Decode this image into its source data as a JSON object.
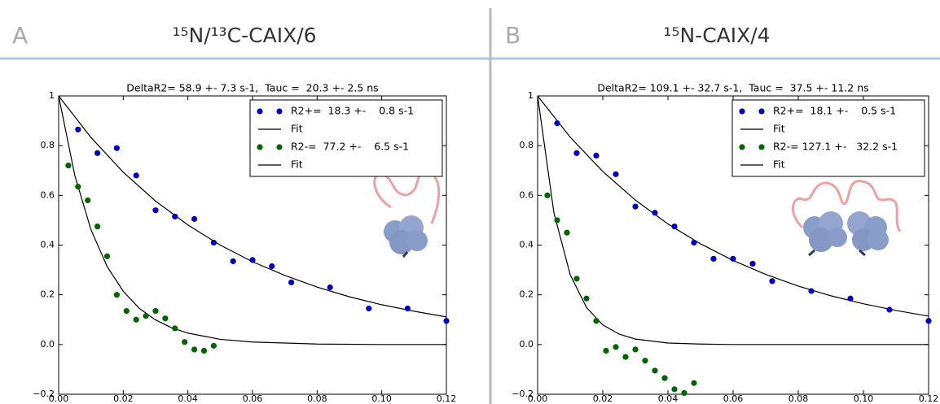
{
  "chart_data": [
    {
      "type": "scatter",
      "panel": "A",
      "title": "¹⁵N/¹³C-CAIX/6",
      "subtitle": "DeltaR2= 58.9 +- 7.3 s-1,  Tauc =  20.3 +- 2.5 ns",
      "xlim": [
        0,
        0.12
      ],
      "ylim": [
        -0.2,
        1.0
      ],
      "xticks": [
        {
          "value": 0,
          "label": "0.00"
        },
        {
          "value": 0.02,
          "label": "0.02"
        },
        {
          "value": 0.04,
          "label": "0.04"
        },
        {
          "value": 0.06,
          "label": "0.06"
        },
        {
          "value": 0.08,
          "label": "0.08"
        },
        {
          "value": 0.1,
          "label": "0.10"
        },
        {
          "value": 0.12,
          "label": "0.12"
        }
      ],
      "yticks": [
        {
          "value": -0.2,
          "label": "−0.2"
        },
        {
          "value": 0,
          "label": "0.0"
        },
        0.2,
        0.4,
        0.6,
        0.8,
        1.0
      ],
      "legend": "upper right",
      "series": [
        {
          "name": "R2+=  18.3 +-    0.8 s-1",
          "type": "scatter",
          "color": "#0000bf",
          "x": [
            0.006,
            0.012,
            0.018,
            0.024,
            0.03,
            0.036,
            0.042,
            0.048,
            0.054,
            0.06,
            0.066,
            0.072,
            0.084,
            0.096,
            0.108,
            0.12
          ],
          "values": [
            0.865,
            0.77,
            0.79,
            0.68,
            0.54,
            0.515,
            0.505,
            0.41,
            0.335,
            0.34,
            0.315,
            0.25,
            0.23,
            0.145,
            0.145,
            0.095
          ]
        },
        {
          "name": "Fit",
          "type": "line",
          "color": "#000000",
          "x": [
            0,
            0.01,
            0.02,
            0.03,
            0.04,
            0.05,
            0.06,
            0.07,
            0.08,
            0.09,
            0.1,
            0.11,
            0.12
          ],
          "values": [
            1,
            0.833,
            0.693,
            0.577,
            0.481,
            0.4,
            0.333,
            0.278,
            0.231,
            0.192,
            0.16,
            0.134,
            0.111
          ]
        },
        {
          "name": "R2-=  77.2 +-    6.5 s-1",
          "type": "scatter",
          "color": "#006400",
          "x": [
            0.003,
            0.006,
            0.009,
            0.012,
            0.015,
            0.018,
            0.021,
            0.024,
            0.027,
            0.03,
            0.033,
            0.036,
            0.039,
            0.042,
            0.045,
            0.048
          ],
          "values": [
            0.72,
            0.635,
            0.58,
            0.475,
            0.355,
            0.2,
            0.135,
            0.1,
            0.115,
            0.135,
            0.105,
            0.065,
            0.01,
            -0.02,
            -0.025,
            -0.005
          ]
        },
        {
          "name": "Fit",
          "type": "line",
          "color": "#000000",
          "x": [
            0,
            0.005,
            0.01,
            0.015,
            0.02,
            0.025,
            0.03,
            0.035,
            0.04,
            0.05,
            0.06,
            0.08,
            0.1,
            0.12
          ],
          "values": [
            1,
            0.68,
            0.462,
            0.314,
            0.214,
            0.145,
            0.099,
            0.067,
            0.046,
            0.021,
            0.01,
            0.002,
            0,
            0
          ]
        }
      ]
    },
    {
      "type": "scatter",
      "panel": "B",
      "title": "¹⁵N-CAIX/4",
      "subtitle": "DeltaR2= 109.1 +- 32.7 s-1,  Tauc =  37.5 +- 11.2 ns",
      "xlim": [
        0,
        0.12
      ],
      "ylim": [
        -0.2,
        1.0
      ],
      "xticks": [
        {
          "value": 0,
          "label": "0.00"
        },
        {
          "value": 0.02,
          "label": "0.02"
        },
        {
          "value": 0.04,
          "label": "0.04"
        },
        {
          "value": 0.06,
          "label": "0.06"
        },
        {
          "value": 0.08,
          "label": "0.08"
        },
        {
          "value": 0.1,
          "label": "0.10"
        },
        {
          "value": 0.12,
          "label": "0.12"
        }
      ],
      "yticks": [
        {
          "value": -0.2,
          "label": "−0.2"
        },
        {
          "value": 0,
          "label": "0.0"
        },
        0.2,
        0.4,
        0.6,
        0.8,
        1.0
      ],
      "legend": "upper right",
      "series": [
        {
          "name": "R2+=  18.1 +-    0.5 s-1",
          "type": "scatter",
          "color": "#0000bf",
          "x": [
            0.006,
            0.012,
            0.018,
            0.024,
            0.03,
            0.036,
            0.042,
            0.048,
            0.054,
            0.06,
            0.066,
            0.072,
            0.084,
            0.096,
            0.108,
            0.12
          ],
          "values": [
            0.89,
            0.77,
            0.76,
            0.685,
            0.555,
            0.53,
            0.475,
            0.41,
            0.345,
            0.345,
            0.325,
            0.255,
            0.215,
            0.185,
            0.14,
            0.095
          ]
        },
        {
          "name": "Fit",
          "type": "line",
          "color": "#000000",
          "x": [
            0,
            0.01,
            0.02,
            0.03,
            0.04,
            0.05,
            0.06,
            0.07,
            0.08,
            0.09,
            0.1,
            0.11,
            0.12
          ],
          "values": [
            1,
            0.834,
            0.696,
            0.581,
            0.485,
            0.405,
            0.338,
            0.282,
            0.235,
            0.196,
            0.164,
            0.137,
            0.114
          ]
        },
        {
          "name": "R2-= 127.1 +-   32.2 s-1",
          "type": "scatter",
          "color": "#006400",
          "x": [
            0.003,
            0.006,
            0.009,
            0.012,
            0.015,
            0.018,
            0.021,
            0.024,
            0.027,
            0.03,
            0.033,
            0.036,
            0.039,
            0.042,
            0.045,
            0.048
          ],
          "values": [
            0.6,
            0.5,
            0.45,
            0.265,
            0.185,
            0.095,
            -0.025,
            -0.01,
            -0.05,
            -0.02,
            -0.065,
            -0.105,
            -0.135,
            -0.18,
            -0.195,
            -0.155
          ]
        },
        {
          "name": "Fit",
          "type": "line",
          "color": "#000000",
          "x": [
            0,
            0.005,
            0.01,
            0.015,
            0.02,
            0.025,
            0.03,
            0.04,
            0.05,
            0.06,
            0.08,
            0.1,
            0.12
          ],
          "values": [
            1,
            0.53,
            0.281,
            0.149,
            0.079,
            0.042,
            0.022,
            0.006,
            0.002,
            0,
            0,
            0,
            0
          ]
        }
      ]
    }
  ]
}
